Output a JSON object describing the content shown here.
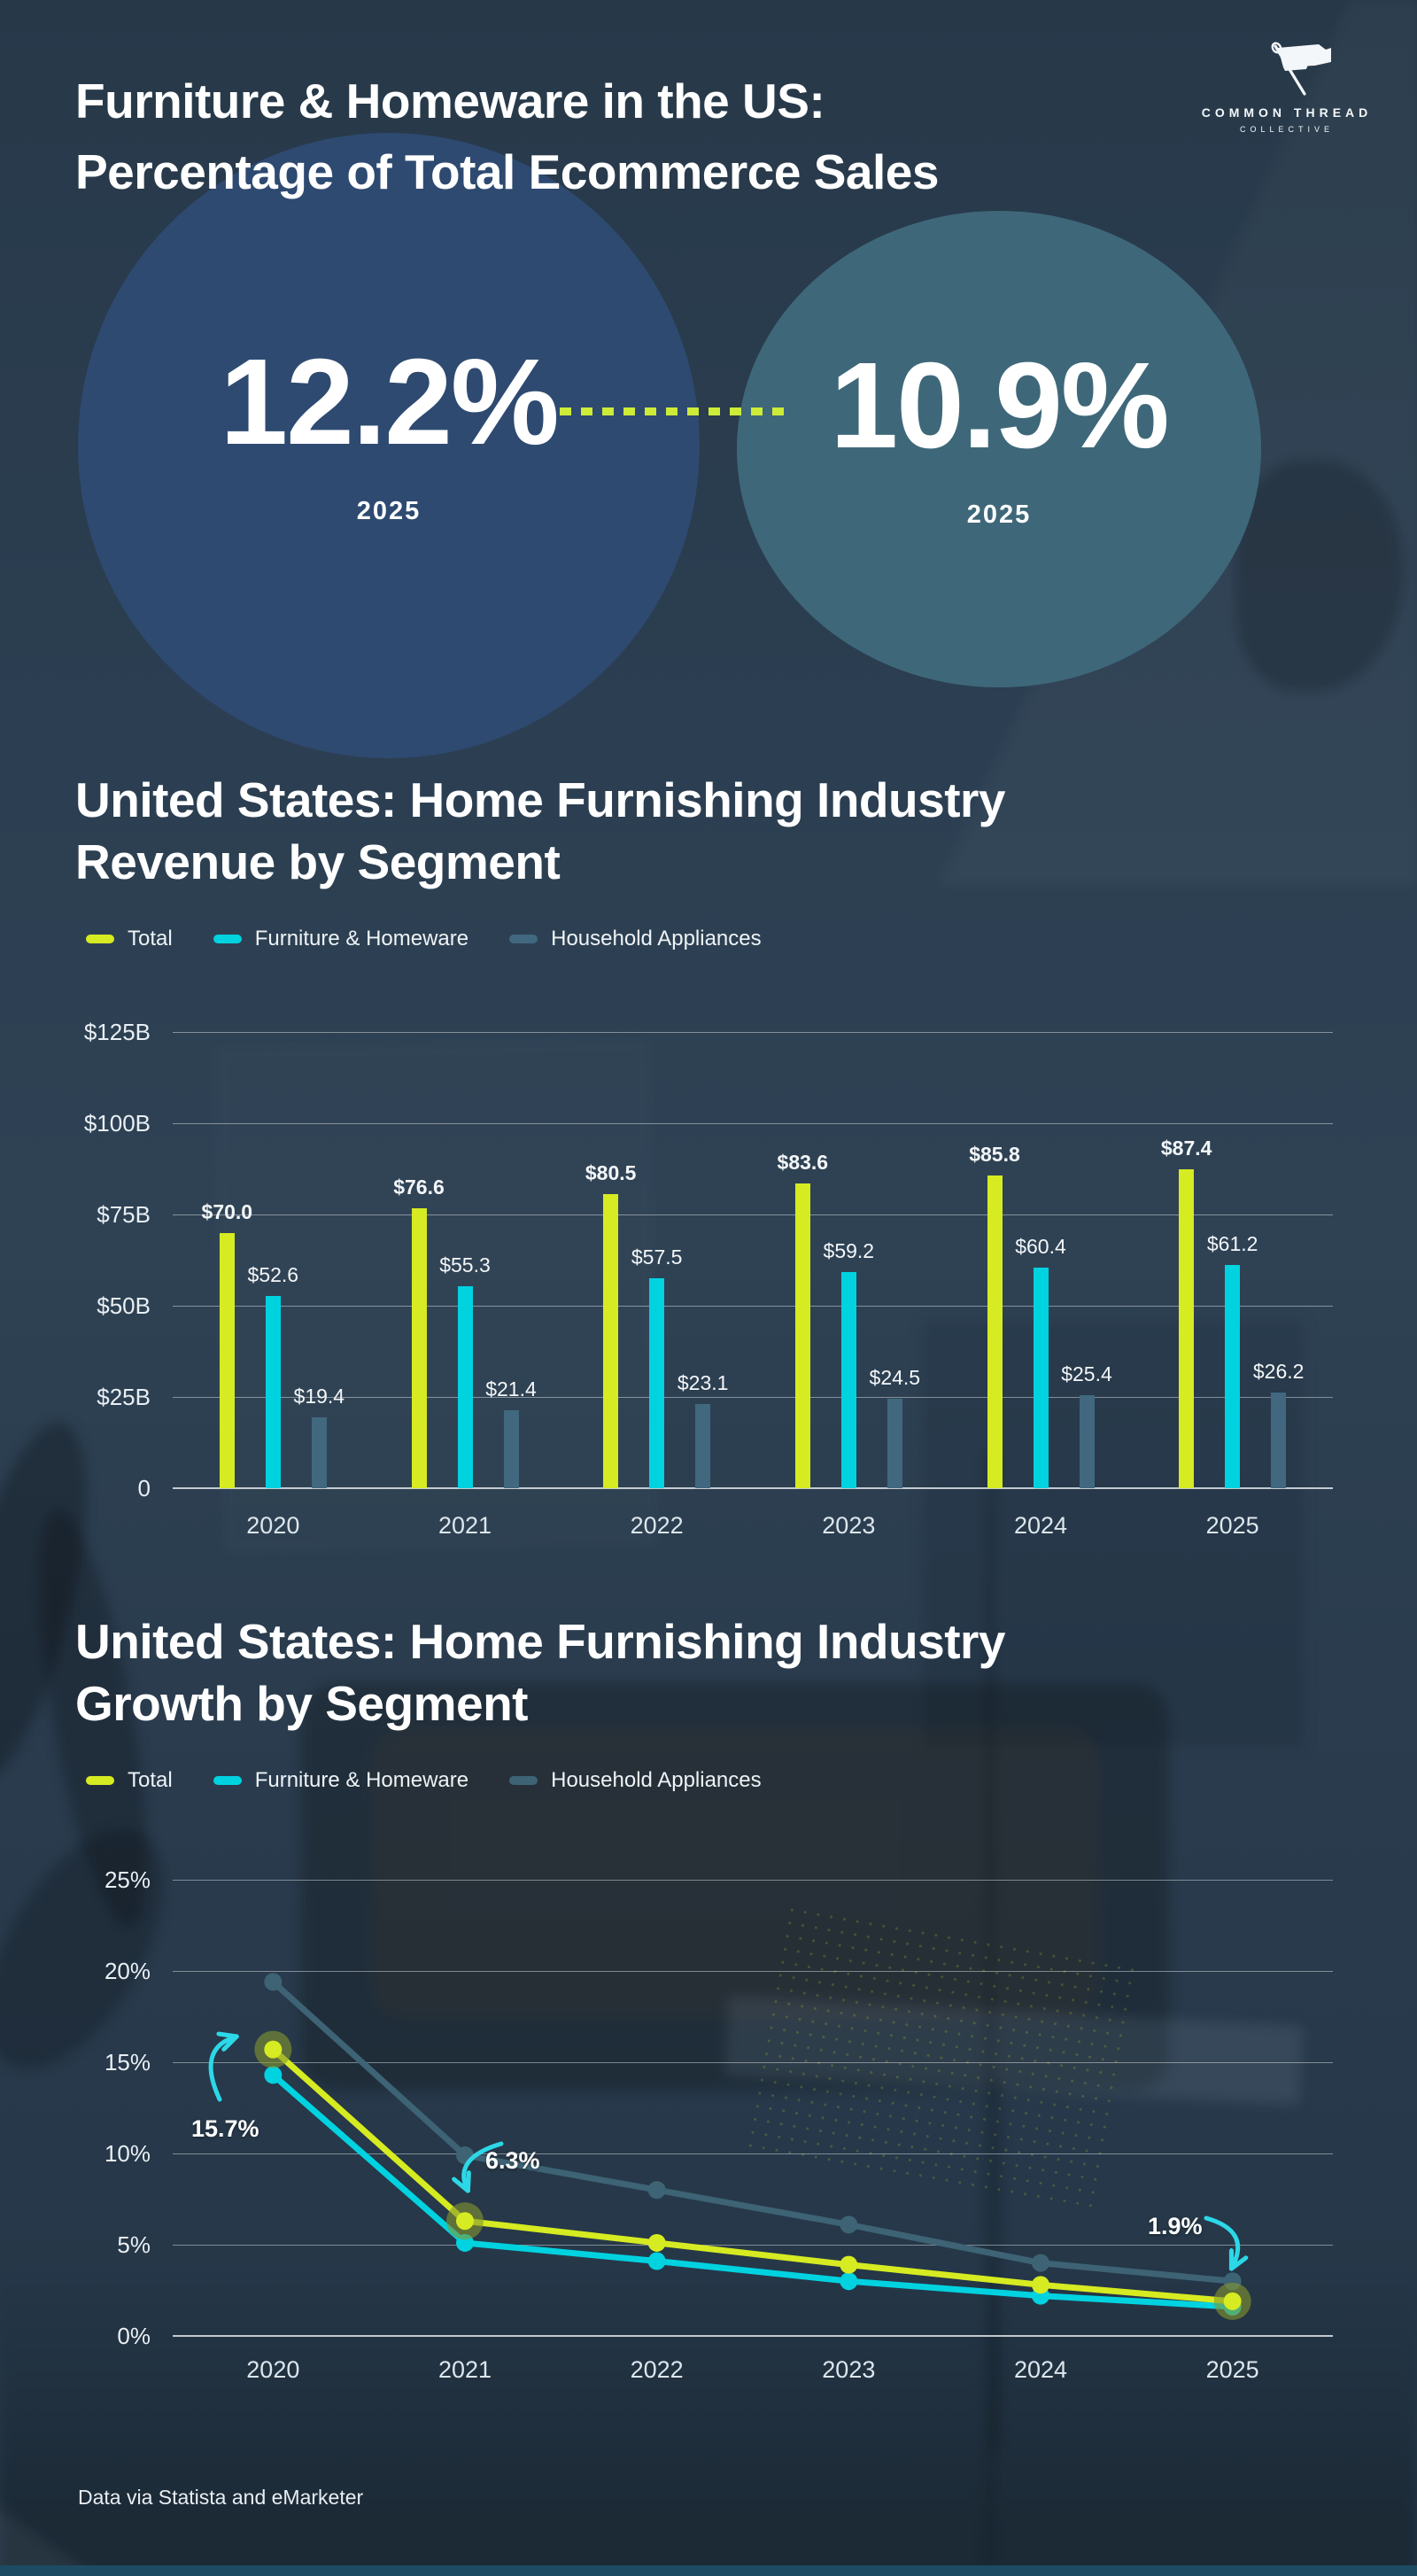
{
  "header": {
    "title_line1": "Furniture & Homeware in the US:",
    "title_line2": "Percentage of Total Ecommerce Sales"
  },
  "logo": {
    "name_line1": "COMMON THREAD",
    "name_line2": "COLLECTIVE",
    "icon": "needle-flag-icon"
  },
  "stats": {
    "left": {
      "value": "12.2%",
      "year": "2025"
    },
    "right": {
      "value": "10.9%",
      "year": "2025"
    }
  },
  "colors": {
    "background": "#2b3e50",
    "total": "#d6eb21",
    "furniture": "#00d2e0",
    "household": "#41687e",
    "household_line": "#3d6375",
    "dotted_connector": "#cdeb37",
    "circle_left": "#2e4a71",
    "circle_right": "#3e6879",
    "arrow": "#2cd8e8"
  },
  "chart_data": [
    {
      "type": "bar",
      "title_line1": "United States: Home Furnishing Industry",
      "title_line2": "Revenue by Segment",
      "unit": "billions USD",
      "categories": [
        "2020",
        "2021",
        "2022",
        "2023",
        "2024",
        "2025"
      ],
      "series": [
        {
          "name": "Total",
          "color_key": "total",
          "values": [
            70.0,
            76.6,
            80.5,
            83.6,
            85.8,
            87.4
          ]
        },
        {
          "name": "Furniture & Homeware",
          "color_key": "furniture",
          "values": [
            52.6,
            55.3,
            57.5,
            59.2,
            60.4,
            61.2
          ]
        },
        {
          "name": "Household Appliances",
          "color_key": "household",
          "values": [
            19.4,
            21.4,
            23.1,
            24.5,
            25.4,
            26.2
          ]
        }
      ],
      "value_label_prefix": "$",
      "y_ticks": [
        "$125B",
        "$100B",
        "$75B",
        "$50B",
        "$25B",
        "0"
      ],
      "ylim": [
        0,
        125
      ],
      "grid": true,
      "legend_position": "top-left"
    },
    {
      "type": "line",
      "title_line1": "United States: Home Furnishing Industry",
      "title_line2": "Growth by Segment",
      "categories": [
        "2020",
        "2021",
        "2022",
        "2023",
        "2024",
        "2025"
      ],
      "series": [
        {
          "name": "Total",
          "color_key": "total",
          "values": [
            15.7,
            6.3,
            5.1,
            3.9,
            2.8,
            1.9
          ],
          "highlighted_points": [
            0,
            1,
            5
          ]
        },
        {
          "name": "Furniture & Homeware",
          "color_key": "furniture",
          "values": [
            14.3,
            5.1,
            4.1,
            3.0,
            2.2,
            1.6
          ]
        },
        {
          "name": "Household Appliances",
          "color_key": "household_line",
          "values": [
            19.4,
            9.9,
            8.0,
            6.1,
            4.0,
            3.0
          ]
        }
      ],
      "y_ticks": [
        "25%",
        "20%",
        "15%",
        "10%",
        "5%",
        "0%"
      ],
      "ylim": [
        0,
        25
      ],
      "grid": true,
      "legend_position": "top-left",
      "annotations": [
        {
          "label": "15.7%",
          "series": "Total",
          "category": "2020"
        },
        {
          "label": "6.3%",
          "series": "Total",
          "category": "2021"
        },
        {
          "label": "1.9%",
          "series": "Total",
          "category": "2025"
        }
      ]
    }
  ],
  "footer": {
    "source": "Data via Statista  and eMarketer"
  }
}
